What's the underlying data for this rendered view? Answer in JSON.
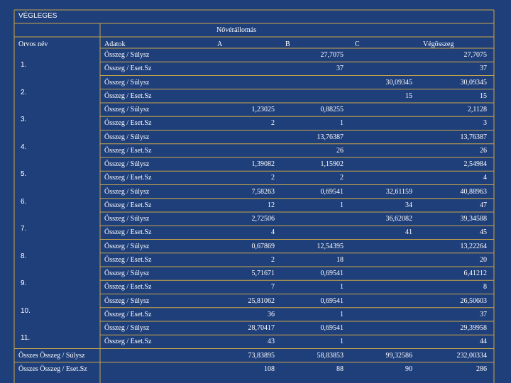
{
  "title": "VÉGLEGES",
  "group_header": "Nővérállomás",
  "headers": {
    "doctor": "Orvos név",
    "data": "Adatok",
    "a": "A",
    "b": "B",
    "c": "C",
    "total": "Végösszeg"
  },
  "rows": [
    {
      "doctor": "1.",
      "label1": "Összeg / Súlysz",
      "v1": [
        "",
        "27,7075",
        "",
        "27,7075"
      ],
      "label2": "Összeg / Eset.Sz",
      "v2": [
        "",
        "37",
        "",
        "37"
      ]
    },
    {
      "doctor": "2.",
      "label1": "Összeg / Súlysz",
      "v1": [
        "",
        "",
        "30,09345",
        "30,09345"
      ],
      "label2": "Összeg / Eset.Sz",
      "v2": [
        "",
        "",
        "15",
        "15"
      ]
    },
    {
      "doctor": "3.",
      "label1": "Összeg / Súlysz",
      "v1": [
        "1,23025",
        "0,88255",
        "",
        "2,1128"
      ],
      "label2": "Összeg / Eset.Sz",
      "v2": [
        "2",
        "1",
        "",
        "3"
      ]
    },
    {
      "doctor": "4.",
      "label1": "Összeg / Súlysz",
      "v1": [
        "",
        "13,76387",
        "",
        "13,76387"
      ],
      "label2": "Összeg / Eset.Sz",
      "v2": [
        "",
        "26",
        "",
        "26"
      ]
    },
    {
      "doctor": "5.",
      "label1": "Összeg / Súlysz",
      "v1": [
        "1,39082",
        "1,15902",
        "",
        "2,54984"
      ],
      "label2": "Összeg / Eset.Sz",
      "v2": [
        "2",
        "2",
        "",
        "4"
      ]
    },
    {
      "doctor": "6.",
      "label1": "Összeg / Súlysz",
      "v1": [
        "7,58263",
        "0,69541",
        "32,61159",
        "40,88963"
      ],
      "label2": "Összeg / Eset.Sz",
      "v2": [
        "12",
        "1",
        "34",
        "47"
      ]
    },
    {
      "doctor": "7.",
      "label1": "Összeg / Súlysz",
      "v1": [
        "2,72506",
        "",
        "36,62082",
        "39,34588"
      ],
      "label2": "Összeg / Eset.Sz",
      "v2": [
        "4",
        "",
        "41",
        "45"
      ]
    },
    {
      "doctor": "8.",
      "label1": "Összeg / Súlysz",
      "v1": [
        "0,67869",
        "12,54395",
        "",
        "13,22264"
      ],
      "label2": "Összeg / Eset.Sz",
      "v2": [
        "2",
        "18",
        "",
        "20"
      ]
    },
    {
      "doctor": "9.",
      "label1": "Összeg / Súlysz",
      "v1": [
        "5,71671",
        "0,69541",
        "",
        "6,41212"
      ],
      "label2": "Összeg / Eset.Sz",
      "v2": [
        "7",
        "1",
        "",
        "8"
      ]
    },
    {
      "doctor": "10.",
      "label1": "Összeg / Súlysz",
      "v1": [
        "25,81062",
        "0,69541",
        "",
        "26,50603"
      ],
      "label2": "Összeg / Eset.Sz",
      "v2": [
        "36",
        "1",
        "",
        "37"
      ]
    },
    {
      "doctor": "11.",
      "label1": "Összeg / Súlysz",
      "v1": [
        "28,70417",
        "0,69541",
        "",
        "29,39958"
      ],
      "label2": "Összeg / Eset.Sz",
      "v2": [
        "43",
        "1",
        "",
        "44"
      ]
    }
  ],
  "totals": [
    {
      "label": "Összes Összeg / Súlysz",
      "values": [
        "73,83895",
        "58,83853",
        "99,32586",
        "232,00334"
      ]
    },
    {
      "label": "Összes Összeg / Eset.Sz",
      "values": [
        "108",
        "88",
        "90",
        "286"
      ]
    }
  ],
  "colors": {
    "background": "#1f3f7a",
    "grid": "#c9a648",
    "text": "#ffffff"
  }
}
